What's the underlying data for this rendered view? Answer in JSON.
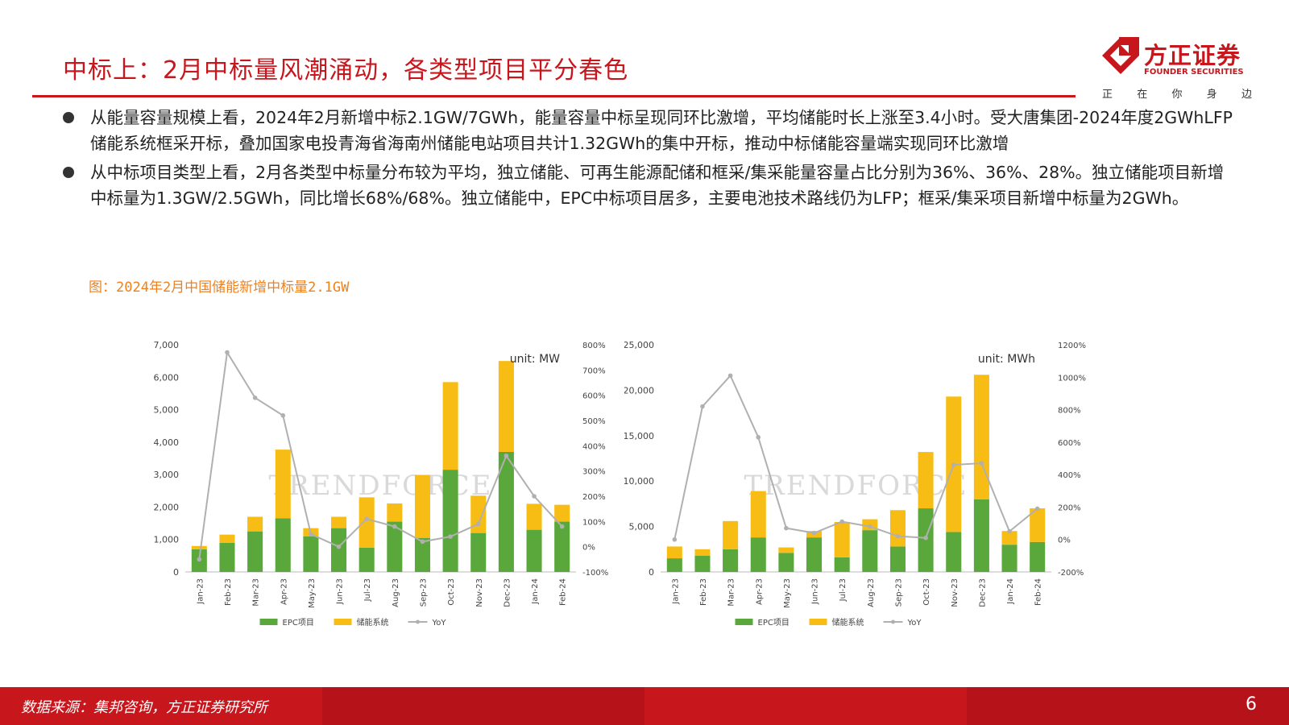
{
  "header": {
    "title": "中标上：2月中标量风潮涌动，各类型项目平分春色"
  },
  "logo": {
    "name": "方正证券",
    "en": "FOUNDER SECURITIES",
    "slogan": [
      "正",
      "在",
      "你",
      "身",
      "边"
    ],
    "color": "#c8161d"
  },
  "bullets": [
    "从能量容量规模上看，2024年2月新增中标2.1GW/7GWh，能量容量中标呈现同环比激增，平均储能时长上涨至3.4小时。受大唐集团-2024年度2GWhLFP储能系统框采开标，叠加国家电投青海省海南州储能电站项目共计1.32GWh的集中开标，推动中标储能容量端实现同环比激增",
    "从中标项目类型上看，2月各类型中标量分布较为平均，独立储能、可再生能源配储和框采/集采能量容量占比分别为36%、36%、28%。独立储能项目新增中标量为1.3GW/2.5GWh，同比增长68%/68%。独立储能中，EPC中标项目居多，主要电池技术路线仍为LFP；框采/集采项目新增中标量为2GWh。"
  ],
  "figure_caption": "图：2024年2月中国储能新增中标量2.1GW",
  "chart_data": [
    {
      "type": "bar",
      "stacked": true,
      "unit_label": "unit: MW",
      "watermark": "TRENDFORCE",
      "categories": [
        "Jan-23",
        "Feb-23",
        "Mar-23",
        "Apr-23",
        "May-23",
        "Jun-23",
        "Jul-23",
        "Aug-23",
        "Sep-23",
        "Oct-23",
        "Nov-23",
        "Dec-23",
        "Jan-24",
        "Feb-24"
      ],
      "series": [
        {
          "name": "EPC项目",
          "color": "#5aa83c",
          "values": [
            700,
            900,
            1250,
            1650,
            1100,
            1350,
            750,
            1550,
            1050,
            3150,
            1200,
            3700,
            1300,
            1550
          ]
        },
        {
          "name": "储能系统",
          "color": "#f8bd14",
          "values": [
            100,
            250,
            450,
            2120,
            250,
            350,
            1550,
            560,
            1940,
            2700,
            1150,
            2800,
            800,
            520
          ]
        },
        {
          "name": "YoY",
          "color": "#b0b0b0",
          "axis": "right",
          "type": "line",
          "values": [
            -50,
            770,
            590,
            520,
            50,
            0,
            110,
            80,
            20,
            40,
            90,
            360,
            200,
            80
          ]
        }
      ],
      "yleft": {
        "min": 0,
        "max": 7000,
        "ticks": [
          "0",
          "1,000",
          "2,000",
          "3,000",
          "4,000",
          "5,000",
          "6,000",
          "7,000"
        ]
      },
      "yright": {
        "min": -100,
        "max": 800,
        "ticks": [
          "-100%",
          "0%",
          "100%",
          "200%",
          "300%",
          "400%",
          "500%",
          "600%",
          "700%",
          "800%"
        ]
      }
    },
    {
      "type": "bar",
      "stacked": true,
      "unit_label": "unit: MWh",
      "watermark": "TRENDFORCE",
      "categories": [
        "Jan-23",
        "Feb-23",
        "Mar-23",
        "Apr-23",
        "May-23",
        "Jun-23",
        "Jul-23",
        "Aug-23",
        "Sep-23",
        "Oct-23",
        "Nov-23",
        "Dec-23",
        "Jan-24",
        "Feb-24"
      ],
      "series": [
        {
          "name": "EPC项目",
          "color": "#5aa83c",
          "values": [
            1500,
            1800,
            2500,
            3800,
            2100,
            3800,
            1600,
            4600,
            2800,
            7000,
            4400,
            8000,
            3000,
            3300
          ]
        },
        {
          "name": "储能系统",
          "color": "#f8bd14",
          "values": [
            1300,
            700,
            3100,
            5100,
            600,
            700,
            3900,
            1200,
            4000,
            6200,
            14900,
            13700,
            1500,
            3700
          ]
        },
        {
          "name": "YoY",
          "color": "#b0b0b0",
          "axis": "right",
          "type": "line",
          "values": [
            0,
            820,
            1010,
            630,
            70,
            40,
            110,
            80,
            20,
            10,
            460,
            470,
            50,
            190
          ]
        }
      ],
      "yleft": {
        "min": 0,
        "max": 25000,
        "ticks": [
          "0",
          "5,000",
          "10,000",
          "15,000",
          "20,000",
          "25,000"
        ]
      },
      "yright": {
        "min": -200,
        "max": 1200,
        "ticks": [
          "-200%",
          "0%",
          "200%",
          "400%",
          "600%",
          "800%",
          "1000%",
          "1200%"
        ]
      }
    }
  ],
  "footer": {
    "source": "数据来源：集邦咨询，方正证券研究所",
    "page": "6"
  }
}
